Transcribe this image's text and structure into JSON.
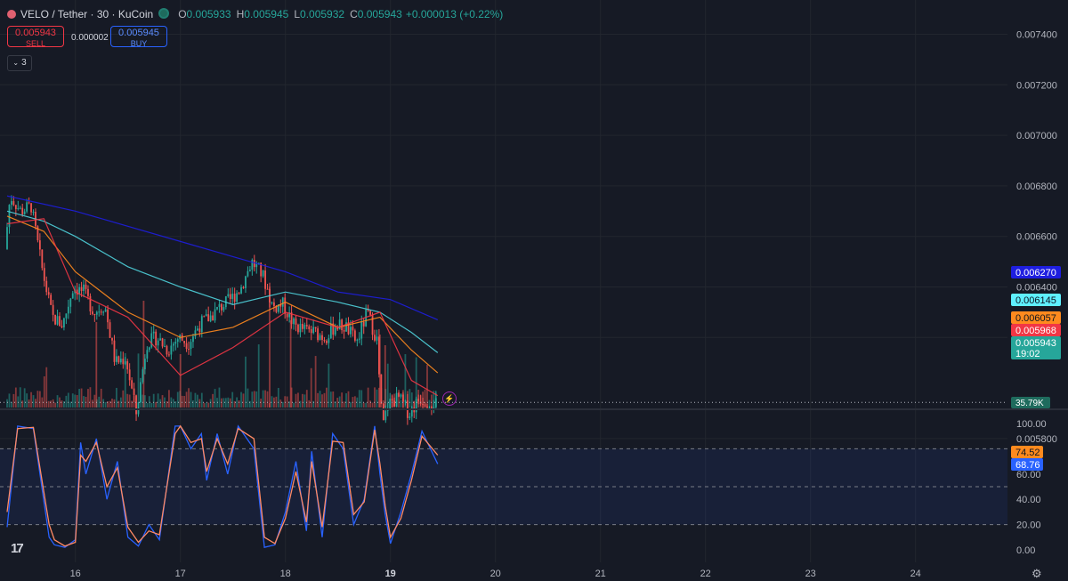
{
  "header": {
    "symbol": "VELO / Tether · 30 · KuCoin",
    "open_label": "O",
    "open": "0.005933",
    "high_label": "H",
    "high": "0.005945",
    "low_label": "L",
    "low": "0.005932",
    "close_label": "C",
    "close": "0.005943",
    "change": "+0.000013 (+0.22%)"
  },
  "trade": {
    "sell_price": "0.005943",
    "sell_label": "SELL",
    "spread": "0.000002",
    "buy_price": "0.005945",
    "buy_label": "BUY"
  },
  "indicators_collapsed_count": "3",
  "price_axis_ticks": [
    "0.007400",
    "0.007200",
    "0.007000",
    "0.006800",
    "0.006600",
    "0.006400",
    "0.006200",
    "0.005800"
  ],
  "osc_axis_ticks": [
    "100.00",
    "60.00",
    "40.00",
    "20.00",
    "0.00"
  ],
  "time_axis_ticks": [
    "16",
    "17",
    "18",
    "19",
    "20",
    "21",
    "22",
    "23",
    "24"
  ],
  "price_badges": [
    {
      "label": "0.006270",
      "bg": "#1e1ee0",
      "fg": "#ffffff"
    },
    {
      "label": "0.006145",
      "bg": "#5ff0ff",
      "fg": "#0b1520"
    },
    {
      "label": "0.006057",
      "bg": "#ff8a1e",
      "fg": "#0b1520"
    },
    {
      "label": "0.005968",
      "bg": "#f23645",
      "fg": "#ffffff"
    },
    {
      "label": "0.005943",
      "bg": "#26a69a",
      "fg": "#ffffff",
      "sub": "19:02"
    }
  ],
  "volume_badge": "35.79K",
  "osc_badges": [
    {
      "label": "74.52",
      "bg": "#ff8a1e",
      "fg": "#0b1520"
    },
    {
      "label": "68.76",
      "bg": "#2962ff",
      "fg": "#ffffff"
    }
  ],
  "colors": {
    "up": "#26a69a",
    "down": "#ef5350",
    "ma_blue": "#1e1ee0",
    "ma_cyan": "#4fd3dd",
    "ma_orange": "#ff8a1e",
    "ma_red": "#f23645",
    "stoch_k": "#2962ff",
    "stoch_d": "#ff8a65",
    "grid": "#22262f"
  },
  "chart_data": {
    "type": "line",
    "description_of_series": "VELO/USDT 30m candles with moving averages, volume and stochastic RSI",
    "x_range": [
      "15",
      "24"
    ],
    "price_ylim": [
      0.0057,
      0.0075
    ],
    "osc_ylim": [
      0,
      100
    ],
    "osc_levels": [
      80,
      50,
      20
    ],
    "series": [
      {
        "name": "",
        "kind": "price_path",
        "x": [
          15.35,
          15.4,
          15.5,
          15.6,
          15.7,
          15.8,
          15.9,
          16.0,
          16.1,
          16.2,
          16.3,
          16.4,
          16.5,
          16.6,
          16.7,
          16.8,
          16.9,
          17.0,
          17.1,
          17.2,
          17.3,
          17.4,
          17.5,
          17.6,
          17.7,
          17.8,
          17.85,
          17.9,
          18.0,
          18.1,
          18.2,
          18.3,
          18.4,
          18.5,
          18.6,
          18.7,
          18.8,
          18.9,
          18.92,
          18.95,
          19.0,
          19.1,
          19.2,
          19.3,
          19.45
        ],
        "values": [
          0.00655,
          0.00676,
          0.0067,
          0.00672,
          0.00648,
          0.00628,
          0.00625,
          0.0064,
          0.00638,
          0.0063,
          0.00633,
          0.0061,
          0.00612,
          0.0059,
          0.00618,
          0.0062,
          0.00615,
          0.0062,
          0.00618,
          0.00625,
          0.00628,
          0.00632,
          0.00635,
          0.0064,
          0.0065,
          0.00645,
          0.00639,
          0.00632,
          0.00633,
          0.00625,
          0.00623,
          0.00622,
          0.0062,
          0.00625,
          0.00624,
          0.00618,
          0.0063,
          0.00618,
          0.00597,
          0.00585,
          0.00594,
          0.00596,
          0.0059,
          0.00596,
          0.00594
        ]
      },
      {
        "name": "",
        "kind": "ma",
        "color": "#1e1ee0",
        "x": [
          15.35,
          16,
          17,
          18,
          18.5,
          19,
          19.45
        ],
        "values": [
          0.00676,
          0.0067,
          0.00658,
          0.00646,
          0.00638,
          0.00635,
          0.00627
        ]
      },
      {
        "name": "",
        "kind": "ma",
        "color": "#4fd3dd",
        "x": [
          15.35,
          15.7,
          16,
          16.5,
          17,
          17.5,
          18,
          18.5,
          18.9,
          19.2,
          19.45
        ],
        "values": [
          0.0067,
          0.00666,
          0.0066,
          0.00648,
          0.0064,
          0.00633,
          0.00638,
          0.00634,
          0.0063,
          0.00622,
          0.00614
        ]
      },
      {
        "name": "",
        "kind": "ma",
        "color": "#ff8a1e",
        "x": [
          15.35,
          15.7,
          16,
          16.5,
          17,
          17.5,
          18,
          18.5,
          18.9,
          19.2,
          19.45
        ],
        "values": [
          0.00668,
          0.00662,
          0.00646,
          0.0063,
          0.0062,
          0.00624,
          0.00634,
          0.00624,
          0.00628,
          0.00615,
          0.00606
        ]
      },
      {
        "name": "",
        "kind": "ma",
        "color": "#f23645",
        "x": [
          15.35,
          15.7,
          16,
          16.5,
          17,
          17.5,
          18,
          18.5,
          18.9,
          19.2,
          19.45
        ],
        "values": [
          0.00665,
          0.00667,
          0.00638,
          0.00628,
          0.00605,
          0.00616,
          0.0063,
          0.00624,
          0.0063,
          0.00603,
          0.00597
        ]
      },
      {
        "name": "",
        "kind": "stoch_k",
        "x": [
          15.35,
          15.45,
          15.6,
          15.75,
          15.8,
          15.9,
          16.0,
          16.05,
          16.1,
          16.2,
          16.3,
          16.4,
          16.5,
          16.6,
          16.7,
          16.8,
          16.95,
          17.0,
          17.1,
          17.2,
          17.25,
          17.35,
          17.45,
          17.55,
          17.7,
          17.8,
          17.9,
          18.0,
          18.1,
          18.2,
          18.25,
          18.35,
          18.45,
          18.55,
          18.65,
          18.75,
          18.85,
          18.9,
          18.95,
          19.0,
          19.1,
          19.2,
          19.3,
          19.45
        ],
        "values": [
          18,
          98,
          96,
          10,
          4,
          2,
          8,
          85,
          60,
          88,
          40,
          70,
          10,
          3,
          20,
          8,
          98,
          98,
          80,
          92,
          55,
          92,
          60,
          98,
          80,
          2,
          4,
          30,
          70,
          15,
          78,
          10,
          92,
          80,
          20,
          40,
          98,
          60,
          28,
          5,
          30,
          60,
          94,
          68
        ]
      },
      {
        "name": "",
        "kind": "stoch_d",
        "x": [
          15.35,
          15.45,
          15.6,
          15.75,
          15.8,
          15.9,
          16.0,
          16.05,
          16.1,
          16.2,
          16.3,
          16.4,
          16.5,
          16.6,
          16.7,
          16.8,
          16.95,
          17.0,
          17.1,
          17.2,
          17.25,
          17.35,
          17.45,
          17.55,
          17.7,
          17.8,
          17.9,
          18.0,
          18.1,
          18.2,
          18.25,
          18.35,
          18.45,
          18.55,
          18.65,
          18.75,
          18.85,
          18.9,
          18.95,
          19.0,
          19.1,
          19.2,
          19.3,
          19.45
        ],
        "values": [
          30,
          96,
          97,
          20,
          8,
          3,
          6,
          75,
          70,
          85,
          50,
          65,
          18,
          6,
          15,
          12,
          92,
          98,
          85,
          88,
          62,
          88,
          68,
          96,
          88,
          10,
          5,
          25,
          62,
          22,
          70,
          18,
          86,
          85,
          28,
          38,
          95,
          68,
          35,
          10,
          25,
          55,
          90,
          75
        ]
      }
    ]
  }
}
